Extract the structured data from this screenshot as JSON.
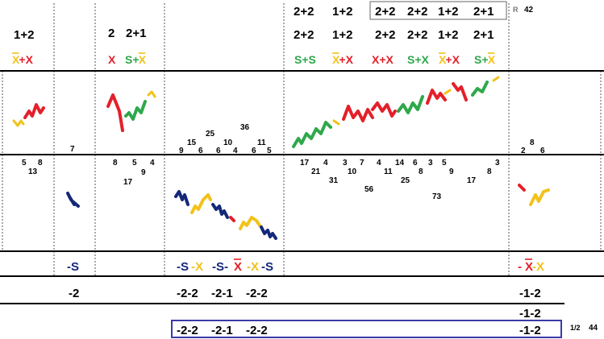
{
  "colors": {
    "red": "#e3202a",
    "green": "#2ea84a",
    "yellow": "#f2c21a",
    "navy": "#14287a",
    "black": "#000000",
    "frame": "#3a3aa8",
    "rule": "#000000",
    "dotted": "#555555"
  },
  "top_row": {
    "labels": [
      "2+2",
      "1+2",
      "2+2",
      "2+2",
      "1+2",
      "2+1"
    ],
    "boxed_index": 2,
    "r_label": "R",
    "r_value": "42"
  },
  "row_pairs": {
    "col1": [
      "1+2"
    ],
    "col3": [
      "2",
      "2+1"
    ],
    "col5": [
      "2+2",
      "1+2",
      "2+2",
      "2+2",
      "1+2",
      "2+1"
    ]
  },
  "row_letters": {
    "col1": [
      {
        "text": "X+X",
        "overline": [
          0
        ],
        "parts": [
          {
            "t": "X",
            "c": "yellow",
            "ol": true
          },
          {
            "t": "+X",
            "c": "red",
            "ol": false
          }
        ]
      }
    ],
    "col3": [
      {
        "parts": [
          {
            "t": "X",
            "c": "red",
            "ol": false
          }
        ]
      },
      {
        "parts": [
          {
            "t": "S+",
            "c": "green",
            "ol": false
          },
          {
            "t": "X",
            "c": "yellow",
            "ol": true
          }
        ]
      }
    ],
    "col5": [
      {
        "parts": [
          {
            "t": "S+S",
            "c": "green",
            "ol": false
          }
        ]
      },
      {
        "parts": [
          {
            "t": "X",
            "c": "yellow",
            "ol": true
          },
          {
            "t": "+X",
            "c": "red",
            "ol": false
          }
        ]
      },
      {
        "parts": [
          {
            "t": "X+X",
            "c": "red",
            "ol": false
          }
        ]
      },
      {
        "parts": [
          {
            "t": "S+X",
            "c": "green",
            "ol": false
          }
        ]
      },
      {
        "parts": [
          {
            "t": "X",
            "c": "yellow",
            "ol": true
          },
          {
            "t": "+X",
            "c": "red",
            "ol": false
          }
        ]
      },
      {
        "parts": [
          {
            "t": "S+",
            "c": "green",
            "ol": false
          },
          {
            "t": "X",
            "c": "yellow",
            "ol": true
          }
        ]
      }
    ]
  },
  "chart_data": {
    "type": "line",
    "title": "",
    "xlabel": "",
    "ylabel": "",
    "upper_numbers": {
      "col2": [
        "7"
      ],
      "col4": [
        "9",
        "15",
        "6",
        "25",
        "6",
        "10",
        "4",
        "36",
        "6",
        "11",
        "5"
      ],
      "col6": [
        "2",
        "8",
        "6"
      ]
    },
    "lower_numbers": {
      "col1": [
        "5",
        "13",
        "8"
      ],
      "col3": [
        "8",
        "17",
        "5",
        "9",
        "4"
      ],
      "col5": [
        "17",
        "21",
        "4",
        "31",
        "3",
        "10",
        "7",
        "11",
        "4",
        "25",
        "14",
        "8",
        "56",
        "6",
        "73",
        "3",
        "9",
        "17",
        "5",
        "8",
        "3"
      ]
    },
    "series": [
      {
        "name": "",
        "color": "yellow",
        "segment": "col1-a"
      },
      {
        "name": "",
        "color": "red",
        "segment": "col1-b"
      },
      {
        "name": "",
        "color": "navy",
        "segment": "col2"
      },
      {
        "name": "",
        "color": "red",
        "segment": "col3-a"
      },
      {
        "name": "",
        "color": "green",
        "segment": "col3-b"
      },
      {
        "name": "",
        "color": "yellow",
        "segment": "col3-c"
      },
      {
        "name": "",
        "color": "navy",
        "segment": "col4-a"
      },
      {
        "name": "",
        "color": "yellow",
        "segment": "col4-b"
      },
      {
        "name": "",
        "color": "navy",
        "segment": "col4-c"
      },
      {
        "name": "",
        "color": "red",
        "segment": "col4-d"
      },
      {
        "name": "",
        "color": "yellow",
        "segment": "col4-e"
      },
      {
        "name": "",
        "color": "navy",
        "segment": "col4-f"
      },
      {
        "name": "",
        "color": "green",
        "segment": "col5"
      },
      {
        "name": "",
        "color": "red",
        "segment": "col6-a"
      },
      {
        "name": "",
        "color": "yellow",
        "segment": "col6-b"
      }
    ]
  },
  "bottom_labels": {
    "col2": {
      "parts": [
        {
          "t": "-S",
          "c": "navy",
          "ol": false
        }
      ]
    },
    "col4": [
      {
        "parts": [
          {
            "t": "-S",
            "c": "navy",
            "ol": false
          },
          {
            "t": "-X",
            "c": "yellow",
            "ol": false
          }
        ]
      },
      {
        "parts": [
          {
            "t": "-S-",
            "c": "navy",
            "ol": false
          },
          {
            "t": "X",
            "c": "red",
            "ol": true
          }
        ]
      },
      {
        "parts": [
          {
            "t": "-X",
            "c": "yellow",
            "ol": false
          },
          {
            "t": "-S",
            "c": "navy",
            "ol": false
          }
        ]
      }
    ],
    "col6": {
      "parts": [
        {
          "t": "-",
          "c": "red",
          "ol": false
        },
        {
          "t": "X",
          "c": "red",
          "ol": true
        },
        {
          "t": "-X",
          "c": "yellow",
          "ol": false
        }
      ]
    }
  },
  "minus_row": {
    "col2": "-2",
    "col4": [
      "-2-2",
      "-2-1",
      "-2-2"
    ],
    "col6": "-1-2"
  },
  "extra_row": {
    "col6": "-1-2"
  },
  "boxed_row": {
    "values": [
      "-2-2",
      "-2-1",
      "-2-2"
    ],
    "right_value": "-1-2",
    "page": "1/2",
    "count": "44"
  }
}
